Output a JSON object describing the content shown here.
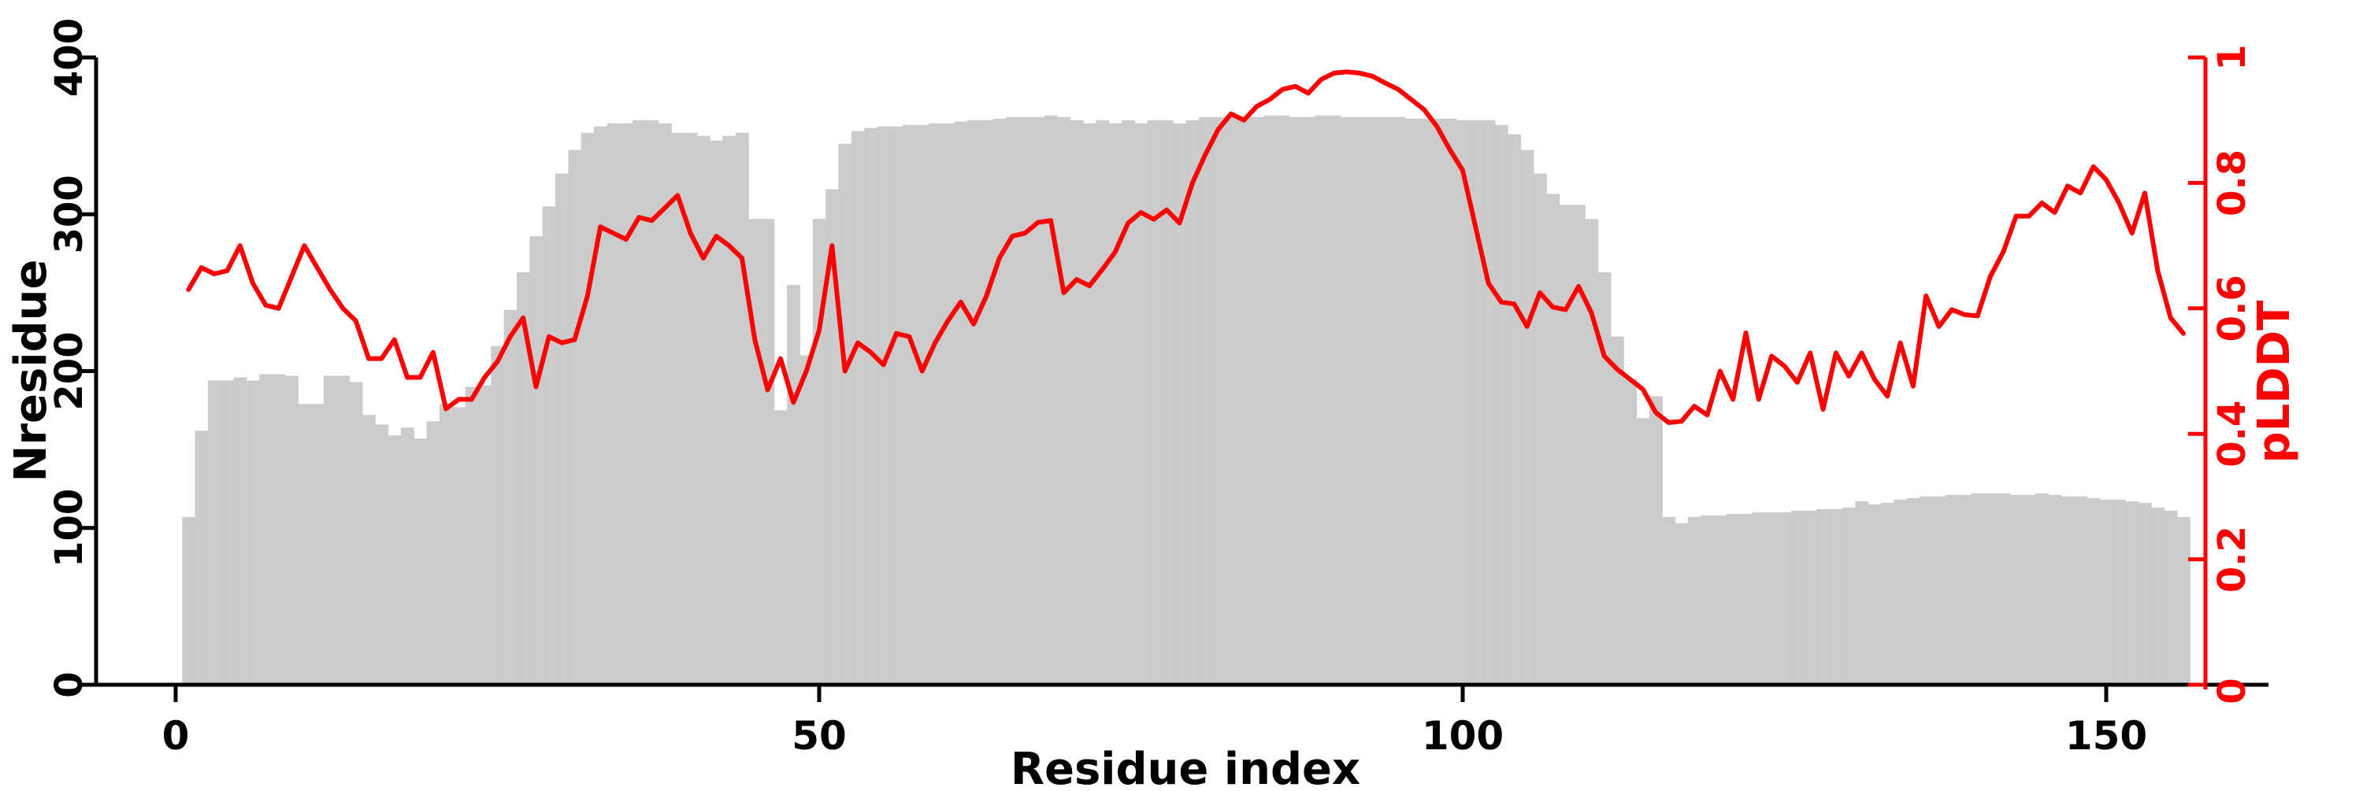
{
  "figure": {
    "background": "#ffffff",
    "bar_color": "#cbcbcb",
    "line_color": "#fe0000",
    "axis_color": "#000000"
  },
  "chart_data": {
    "type": "bar+line",
    "title": "",
    "x_axis": {
      "label": "Residue index",
      "ticks": [
        0,
        50,
        100,
        150
      ],
      "tick_labels": [
        "0",
        "50",
        "100",
        "150"
      ],
      "range_shown": [
        -6,
        163
      ]
    },
    "y_axis_left": {
      "label": "Nresidue",
      "ticks": [
        0,
        100,
        200,
        300,
        400
      ],
      "tick_labels": [
        "0",
        "100",
        "200",
        "300",
        "400"
      ],
      "range": [
        0,
        400
      ],
      "color": "#000000"
    },
    "y_axis_right": {
      "label": "pLDDT",
      "ticks": [
        0,
        0.2,
        0.4,
        0.6,
        0.8,
        1
      ],
      "tick_labels": [
        "0",
        "0.2",
        "0.4",
        "0.6",
        "0.8",
        "1"
      ],
      "range": [
        0,
        1
      ],
      "color": "#fe0000"
    },
    "grid": false,
    "legend": false,
    "x": [
      1,
      2,
      3,
      4,
      5,
      6,
      7,
      8,
      9,
      10,
      11,
      12,
      13,
      14,
      15,
      16,
      17,
      18,
      19,
      20,
      21,
      22,
      23,
      24,
      25,
      26,
      27,
      28,
      29,
      30,
      31,
      32,
      33,
      34,
      35,
      36,
      37,
      38,
      39,
      40,
      41,
      42,
      43,
      44,
      45,
      46,
      47,
      48,
      49,
      50,
      51,
      52,
      53,
      54,
      55,
      56,
      57,
      58,
      59,
      60,
      61,
      62,
      63,
      64,
      65,
      66,
      67,
      68,
      69,
      70,
      71,
      72,
      73,
      74,
      75,
      76,
      77,
      78,
      79,
      80,
      81,
      82,
      83,
      84,
      85,
      86,
      87,
      88,
      89,
      90,
      91,
      92,
      93,
      94,
      95,
      96,
      97,
      98,
      99,
      100,
      101,
      102,
      103,
      104,
      105,
      106,
      107,
      108,
      109,
      110,
      111,
      112,
      113,
      114,
      115,
      116,
      117,
      118,
      119,
      120,
      121,
      122,
      123,
      124,
      125,
      126,
      127,
      128,
      129,
      130,
      131,
      132,
      133,
      134,
      135,
      136,
      137,
      138,
      139,
      140,
      141,
      142,
      143,
      144,
      145,
      146,
      147,
      148,
      149,
      150,
      151,
      152,
      153,
      154,
      155,
      156
    ],
    "series": [
      {
        "name": "Nresidue",
        "type": "bar",
        "yaxis": "left",
        "color": "#cbcbcb",
        "values": [
          107,
          162,
          194,
          194,
          196,
          194,
          198,
          198,
          197,
          179,
          179,
          197,
          197,
          193,
          172,
          166,
          159,
          164,
          157,
          168,
          179,
          177,
          190,
          191,
          216,
          239,
          263,
          286,
          305,
          326,
          341,
          352,
          356,
          358,
          358,
          360,
          360,
          358,
          352,
          352,
          350,
          347,
          350,
          352,
          297,
          297,
          175,
          255,
          210,
          297,
          316,
          345,
          353,
          355,
          356,
          356,
          357,
          357,
          358,
          358,
          359,
          360,
          360,
          361,
          362,
          362,
          362,
          363,
          362,
          360,
          358,
          360,
          358,
          360,
          358,
          360,
          360,
          358,
          360,
          362,
          362,
          362,
          362,
          362,
          363,
          363,
          362,
          362,
          363,
          363,
          362,
          362,
          362,
          362,
          362,
          361,
          361,
          361,
          361,
          360,
          360,
          360,
          357,
          351,
          341,
          326,
          313,
          306,
          306,
          297,
          263,
          222,
          195,
          170,
          184,
          107,
          103,
          107,
          108,
          108,
          109,
          109,
          110,
          110,
          110,
          111,
          111,
          112,
          112,
          113,
          117,
          115,
          116,
          118,
          119,
          120,
          120,
          121,
          121,
          122,
          122,
          122,
          121,
          121,
          122,
          121,
          120,
          120,
          119,
          118,
          118,
          117,
          116,
          113,
          111,
          107
        ]
      },
      {
        "name": "pLDDT",
        "type": "line",
        "yaxis": "right",
        "color": "#fe0000",
        "values": [
          0.63,
          0.665,
          0.655,
          0.66,
          0.7,
          0.64,
          0.605,
          0.6,
          0.65,
          0.7,
          0.665,
          0.63,
          0.6,
          0.58,
          0.52,
          0.52,
          0.55,
          0.49,
          0.49,
          0.53,
          0.44,
          0.455,
          0.455,
          0.49,
          0.515,
          0.555,
          0.585,
          0.475,
          0.555,
          0.545,
          0.55,
          0.62,
          0.73,
          0.72,
          0.71,
          0.745,
          0.74,
          0.76,
          0.78,
          0.72,
          0.68,
          0.715,
          0.7,
          0.68,
          0.55,
          0.47,
          0.52,
          0.45,
          0.5,
          0.565,
          0.7,
          0.5,
          0.545,
          0.53,
          0.51,
          0.56,
          0.555,
          0.5,
          0.545,
          0.58,
          0.61,
          0.575,
          0.62,
          0.68,
          0.715,
          0.72,
          0.737,
          0.74,
          0.625,
          0.646,
          0.636,
          0.662,
          0.69,
          0.736,
          0.753,
          0.742,
          0.757,
          0.736,
          0.8,
          0.845,
          0.885,
          0.91,
          0.9,
          0.922,
          0.933,
          0.949,
          0.954,
          0.943,
          0.965,
          0.975,
          0.977,
          0.975,
          0.97,
          0.959,
          0.949,
          0.933,
          0.917,
          0.89,
          0.853,
          0.82,
          0.73,
          0.64,
          0.61,
          0.607,
          0.571,
          0.625,
          0.602,
          0.598,
          0.635,
          0.593,
          0.524,
          0.503,
          0.487,
          0.471,
          0.434,
          0.418,
          0.42,
          0.444,
          0.43,
          0.5,
          0.455,
          0.561,
          0.455,
          0.524,
          0.508,
          0.482,
          0.529,
          0.439,
          0.529,
          0.492,
          0.529,
          0.487,
          0.46,
          0.545,
          0.476,
          0.62,
          0.571,
          0.598,
          0.59,
          0.588,
          0.651,
          0.69,
          0.747,
          0.747,
          0.768,
          0.753,
          0.795,
          0.784,
          0.826,
          0.805,
          0.768,
          0.72,
          0.784,
          0.66,
          0.585,
          0.56
        ]
      }
    ]
  }
}
